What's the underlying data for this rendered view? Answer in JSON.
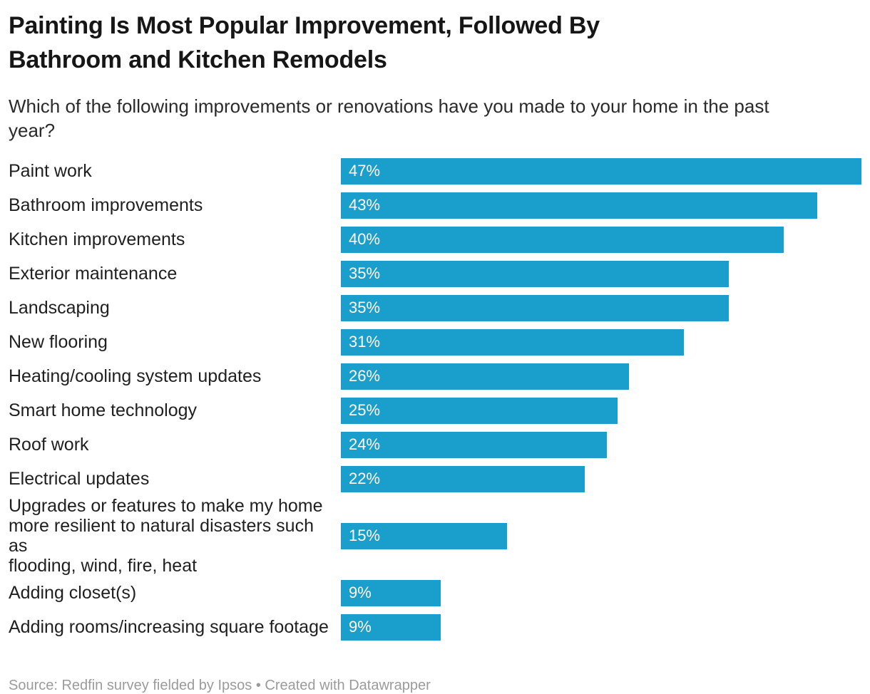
{
  "chart_data": {
    "type": "bar",
    "orientation": "horizontal",
    "title": "Painting Is Most Popular Improvement, Followed By\nBathroom and Kitchen Remodels",
    "subtitle": "Which of the following improvements or renovations have you made to your home in the past\nyear?",
    "categories": [
      "Paint work",
      "Bathroom improvements",
      "Kitchen improvements",
      "Exterior maintenance",
      "Landscaping",
      "New flooring",
      "Heating/cooling system updates",
      "Smart home technology",
      "Roof work",
      "Electrical updates",
      "Upgrades or features to make my home\nmore resilient to natural disasters such as\nflooding, wind, fire, heat",
      "Adding closet(s)",
      "Adding rooms/increasing square footage"
    ],
    "values": [
      47,
      43,
      40,
      35,
      35,
      31,
      26,
      25,
      24,
      22,
      15,
      9,
      9
    ],
    "value_labels": [
      "47%",
      "43%",
      "40%",
      "35%",
      "35%",
      "31%",
      "26%",
      "25%",
      "24%",
      "22%",
      "15%",
      "9%",
      "9%"
    ],
    "xlim": [
      0,
      47
    ],
    "grid": false,
    "legend": "none",
    "bar_color": "#1a9ecb",
    "value_label_color": "#ffffff"
  },
  "footer": {
    "source": "Source: Redfin survey fielded by Ipsos • Created with Datawrapper"
  }
}
